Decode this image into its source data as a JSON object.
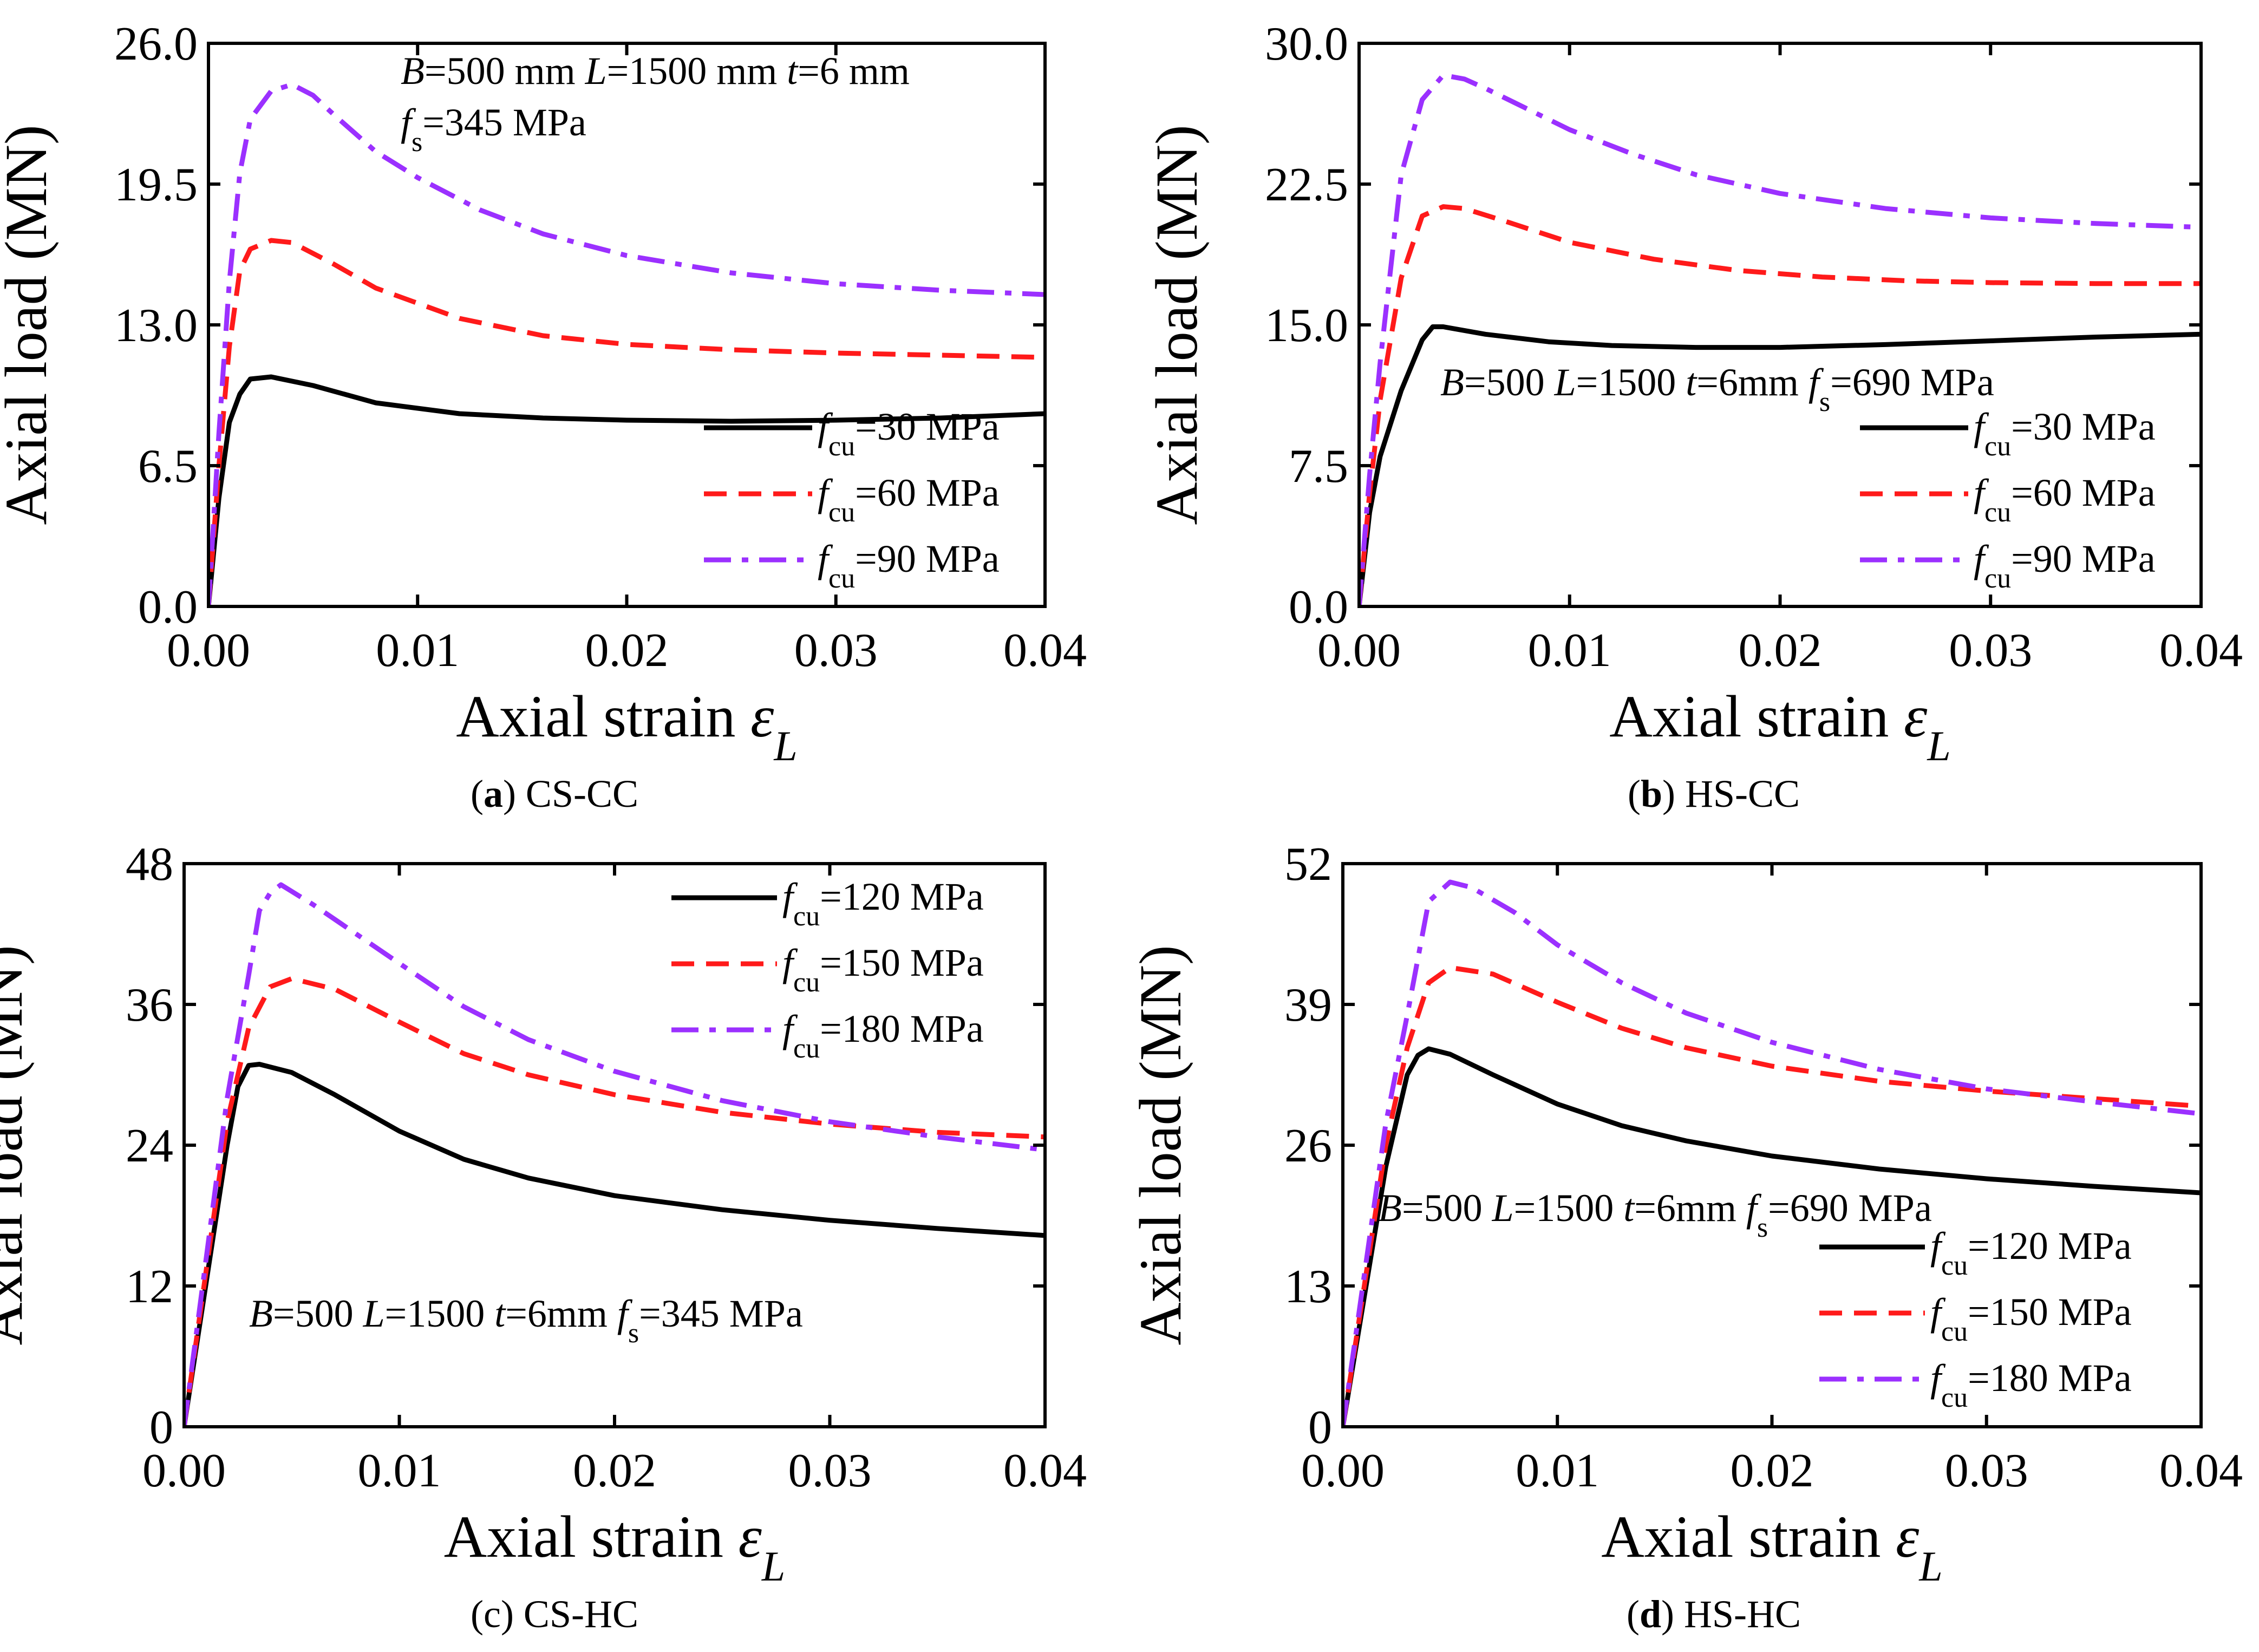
{
  "figure": {
    "colors": {
      "black": "#000000",
      "red": "#ff1a1a",
      "purple": "#9b30ff"
    }
  },
  "chart_data": [
    {
      "type": "line",
      "panel_id": "a",
      "caption_letter": "a",
      "caption_text": "CS-CC",
      "caption_bold": true,
      "xlabel": "Axial strain",
      "xlabel_symbol": "ε",
      "xlabel_subscript": "L",
      "ylabel": "Axial load (MN)",
      "xlim": [
        0,
        0.04
      ],
      "ylim": [
        0,
        26
      ],
      "xticks": [
        "0.00",
        "0.01",
        "0.02",
        "0.03",
        "0.04"
      ],
      "yticks": [
        "0.0",
        "6.5",
        "13.0",
        "19.5",
        "26.0"
      ],
      "legend_position": "bottom-right",
      "annotation": "B=500 mm  L=1500 mm  t=6 mm  fs=345 MPa",
      "series": [
        {
          "name": "fcu=30 MPa",
          "label_prefix": "f",
          "label_sub": "cu",
          "label_suffix": "=30 MPa",
          "color": "#000000",
          "dash": "solid",
          "points": [
            [
              0,
              0
            ],
            [
              0.0005,
              5.0
            ],
            [
              0.001,
              8.5
            ],
            [
              0.0015,
              9.8
            ],
            [
              0.002,
              10.5
            ],
            [
              0.003,
              10.6
            ],
            [
              0.005,
              10.2
            ],
            [
              0.008,
              9.4
            ],
            [
              0.012,
              8.9
            ],
            [
              0.016,
              8.7
            ],
            [
              0.02,
              8.6
            ],
            [
              0.025,
              8.55
            ],
            [
              0.03,
              8.6
            ],
            [
              0.035,
              8.7
            ],
            [
              0.04,
              8.9
            ]
          ]
        },
        {
          "name": "fcu=60 MPa",
          "label_prefix": "f",
          "label_sub": "cu",
          "label_suffix": "=60 MPa",
          "color": "#ff1a1a",
          "dash": "dash",
          "points": [
            [
              0,
              0
            ],
            [
              0.0005,
              6.5
            ],
            [
              0.001,
              12.0
            ],
            [
              0.0015,
              15.5
            ],
            [
              0.002,
              16.5
            ],
            [
              0.003,
              16.9
            ],
            [
              0.004,
              16.8
            ],
            [
              0.006,
              15.8
            ],
            [
              0.008,
              14.7
            ],
            [
              0.012,
              13.3
            ],
            [
              0.016,
              12.5
            ],
            [
              0.02,
              12.1
            ],
            [
              0.025,
              11.85
            ],
            [
              0.03,
              11.7
            ],
            [
              0.035,
              11.6
            ],
            [
              0.04,
              11.5
            ]
          ]
        },
        {
          "name": "fcu=90 MPa",
          "label_prefix": "f",
          "label_sub": "cu",
          "label_suffix": "=90 MPa",
          "color": "#9b30ff",
          "dash": "dashdot",
          "points": [
            [
              0,
              0
            ],
            [
              0.0005,
              8.0
            ],
            [
              0.001,
              15.0
            ],
            [
              0.0015,
              20.0
            ],
            [
              0.002,
              22.5
            ],
            [
              0.003,
              23.8
            ],
            [
              0.004,
              24.1
            ],
            [
              0.005,
              23.6
            ],
            [
              0.006,
              22.7
            ],
            [
              0.008,
              21.0
            ],
            [
              0.01,
              19.8
            ],
            [
              0.013,
              18.3
            ],
            [
              0.016,
              17.2
            ],
            [
              0.02,
              16.2
            ],
            [
              0.025,
              15.4
            ],
            [
              0.03,
              14.9
            ],
            [
              0.035,
              14.6
            ],
            [
              0.04,
              14.4
            ]
          ]
        }
      ]
    },
    {
      "type": "line",
      "panel_id": "b",
      "caption_letter": "b",
      "caption_text": "HS-CC",
      "caption_bold": true,
      "xlabel": "Axial strain",
      "xlabel_symbol": "ε",
      "xlabel_subscript": "L",
      "ylabel": "Axial load (MN)",
      "xlim": [
        0,
        0.04
      ],
      "ylim": [
        0,
        30
      ],
      "xticks": [
        "0.00",
        "0.01",
        "0.02",
        "0.03",
        "0.04"
      ],
      "yticks": [
        "0.0",
        "7.5",
        "15.0",
        "22.5",
        "30.0"
      ],
      "legend_position": "bottom-right",
      "annotation": "B=500  L=1500  t=6mm fs=690 MPa",
      "series": [
        {
          "name": "fcu=30 MPa",
          "label_prefix": "f",
          "label_sub": "cu",
          "label_suffix": "=30 MPa",
          "color": "#000000",
          "dash": "solid",
          "points": [
            [
              0,
              0
            ],
            [
              0.0005,
              5.0
            ],
            [
              0.001,
              8.0
            ],
            [
              0.002,
              11.5
            ],
            [
              0.003,
              14.2
            ],
            [
              0.0035,
              14.9
            ],
            [
              0.004,
              14.9
            ],
            [
              0.006,
              14.5
            ],
            [
              0.009,
              14.1
            ],
            [
              0.012,
              13.9
            ],
            [
              0.016,
              13.8
            ],
            [
              0.02,
              13.8
            ],
            [
              0.025,
              13.95
            ],
            [
              0.03,
              14.15
            ],
            [
              0.035,
              14.35
            ],
            [
              0.04,
              14.5
            ]
          ]
        },
        {
          "name": "fcu=60 MPa",
          "label_prefix": "f",
          "label_sub": "cu",
          "label_suffix": "=60 MPa",
          "color": "#ff1a1a",
          "dash": "dash",
          "points": [
            [
              0,
              0
            ],
            [
              0.0005,
              6.0
            ],
            [
              0.001,
              11.0
            ],
            [
              0.002,
              17.5
            ],
            [
              0.003,
              20.8
            ],
            [
              0.004,
              21.3
            ],
            [
              0.005,
              21.2
            ],
            [
              0.007,
              20.5
            ],
            [
              0.01,
              19.4
            ],
            [
              0.014,
              18.5
            ],
            [
              0.018,
              17.9
            ],
            [
              0.022,
              17.55
            ],
            [
              0.026,
              17.35
            ],
            [
              0.03,
              17.25
            ],
            [
              0.035,
              17.2
            ],
            [
              0.04,
              17.2
            ]
          ]
        },
        {
          "name": "fcu=90 MPa",
          "label_prefix": "f",
          "label_sub": "cu",
          "label_suffix": "=90 MPa",
          "color": "#9b30ff",
          "dash": "dashdot",
          "points": [
            [
              0,
              0
            ],
            [
              0.0005,
              7.0
            ],
            [
              0.001,
              13.0
            ],
            [
              0.002,
              23.0
            ],
            [
              0.003,
              27.0
            ],
            [
              0.004,
              28.3
            ],
            [
              0.005,
              28.1
            ],
            [
              0.006,
              27.6
            ],
            [
              0.008,
              26.5
            ],
            [
              0.01,
              25.4
            ],
            [
              0.013,
              24.1
            ],
            [
              0.016,
              23.0
            ],
            [
              0.02,
              22.0
            ],
            [
              0.025,
              21.2
            ],
            [
              0.03,
              20.7
            ],
            [
              0.035,
              20.4
            ],
            [
              0.04,
              20.2
            ]
          ]
        }
      ]
    },
    {
      "type": "line",
      "panel_id": "c",
      "caption_letter": "c",
      "caption_text": "CS-HC",
      "caption_bold": false,
      "xlabel": "Axial strain",
      "xlabel_symbol": "ε",
      "xlabel_subscript": "L",
      "ylabel": "Axial load (MN)",
      "xlim": [
        0,
        0.04
      ],
      "ylim": [
        0,
        48
      ],
      "xticks": [
        "0.00",
        "0.01",
        "0.02",
        "0.03",
        "0.04"
      ],
      "yticks": [
        "0",
        "12",
        "24",
        "36",
        "48"
      ],
      "legend_position": "top-right",
      "annotation": "B=500  L=1500  t=6mm fs=345 MPa",
      "series": [
        {
          "name": "fcu=120 MPa",
          "label_prefix": "f",
          "label_sub": "cu",
          "label_suffix": "=120 MPa",
          "color": "#000000",
          "dash": "solid",
          "points": [
            [
              0,
              0
            ],
            [
              0.001,
              12.0
            ],
            [
              0.002,
              24.0
            ],
            [
              0.0025,
              29.0
            ],
            [
              0.003,
              30.8
            ],
            [
              0.0035,
              30.9
            ],
            [
              0.005,
              30.2
            ],
            [
              0.007,
              28.3
            ],
            [
              0.01,
              25.2
            ],
            [
              0.013,
              22.8
            ],
            [
              0.016,
              21.2
            ],
            [
              0.02,
              19.7
            ],
            [
              0.025,
              18.5
            ],
            [
              0.03,
              17.6
            ],
            [
              0.035,
              16.9
            ],
            [
              0.04,
              16.3
            ]
          ]
        },
        {
          "name": "fcu=150 MPa",
          "label_prefix": "f",
          "label_sub": "cu",
          "label_suffix": "=150 MPa",
          "color": "#ff1a1a",
          "dash": "dash",
          "points": [
            [
              0,
              0
            ],
            [
              0.001,
              13.0
            ],
            [
              0.002,
              26.0
            ],
            [
              0.003,
              34.0
            ],
            [
              0.004,
              37.5
            ],
            [
              0.005,
              38.2
            ],
            [
              0.007,
              37.3
            ],
            [
              0.01,
              34.5
            ],
            [
              0.013,
              31.8
            ],
            [
              0.016,
              30.0
            ],
            [
              0.02,
              28.3
            ],
            [
              0.025,
              26.8
            ],
            [
              0.03,
              25.8
            ],
            [
              0.035,
              25.1
            ],
            [
              0.04,
              24.7
            ]
          ]
        },
        {
          "name": "fcu=180 MPa",
          "label_prefix": "f",
          "label_sub": "cu",
          "label_suffix": "=180 MPa",
          "color": "#9b30ff",
          "dash": "dashdot",
          "points": [
            [
              0,
              0
            ],
            [
              0.001,
              14.0
            ],
            [
              0.002,
              28.0
            ],
            [
              0.003,
              38.5
            ],
            [
              0.0035,
              44.0
            ],
            [
              0.004,
              45.5
            ],
            [
              0.0045,
              46.2
            ],
            [
              0.006,
              44.5
            ],
            [
              0.008,
              42.0
            ],
            [
              0.01,
              39.5
            ],
            [
              0.013,
              35.8
            ],
            [
              0.016,
              33.0
            ],
            [
              0.02,
              30.3
            ],
            [
              0.025,
              27.8
            ],
            [
              0.03,
              26.0
            ],
            [
              0.035,
              24.7
            ],
            [
              0.04,
              23.6
            ]
          ]
        }
      ]
    },
    {
      "type": "line",
      "panel_id": "d",
      "caption_letter": "d",
      "caption_text": "HS-HC",
      "caption_bold": true,
      "xlabel": "Axial strain",
      "xlabel_symbol": "ε",
      "xlabel_subscript": "L",
      "ylabel": "Axial load (MN)",
      "xlim": [
        0,
        0.04
      ],
      "ylim": [
        0,
        52
      ],
      "xticks": [
        "0.00",
        "0.01",
        "0.02",
        "0.03",
        "0.04"
      ],
      "yticks": [
        "0",
        "13",
        "26",
        "39",
        "52"
      ],
      "legend_position": "bottom-right",
      "annotation": "B=500  L=1500  t=6mm fs=690 MPa",
      "series": [
        {
          "name": "fcu=120 MPa",
          "label_prefix": "f",
          "label_sub": "cu",
          "label_suffix": "=120 MPa",
          "color": "#000000",
          "dash": "solid",
          "points": [
            [
              0,
              0
            ],
            [
              0.001,
              12.0
            ],
            [
              0.002,
              24.0
            ],
            [
              0.003,
              32.5
            ],
            [
              0.0035,
              34.3
            ],
            [
              0.004,
              34.9
            ],
            [
              0.005,
              34.4
            ],
            [
              0.007,
              32.5
            ],
            [
              0.01,
              29.8
            ],
            [
              0.013,
              27.8
            ],
            [
              0.016,
              26.4
            ],
            [
              0.02,
              25.0
            ],
            [
              0.025,
              23.8
            ],
            [
              0.03,
              22.9
            ],
            [
              0.035,
              22.2
            ],
            [
              0.04,
              21.6
            ]
          ]
        },
        {
          "name": "fcu=150 MPa",
          "label_prefix": "f",
          "label_sub": "cu",
          "label_suffix": "=150 MPa",
          "color": "#ff1a1a",
          "dash": "dash",
          "points": [
            [
              0,
              0
            ],
            [
              0.001,
              13.0
            ],
            [
              0.002,
              26.0
            ],
            [
              0.003,
              35.0
            ],
            [
              0.004,
              41.0
            ],
            [
              0.005,
              42.4
            ],
            [
              0.007,
              41.8
            ],
            [
              0.01,
              39.2
            ],
            [
              0.013,
              36.8
            ],
            [
              0.016,
              35.0
            ],
            [
              0.02,
              33.3
            ],
            [
              0.025,
              31.9
            ],
            [
              0.03,
              31.0
            ],
            [
              0.035,
              30.3
            ],
            [
              0.04,
              29.6
            ]
          ]
        },
        {
          "name": "fcu=180 MPa",
          "label_prefix": "f",
          "label_sub": "cu",
          "label_suffix": "=180 MPa",
          "color": "#9b30ff",
          "dash": "dashdot",
          "points": [
            [
              0,
              0
            ],
            [
              0.001,
              14.0
            ],
            [
              0.002,
              28.0
            ],
            [
              0.003,
              38.0
            ],
            [
              0.004,
              48.5
            ],
            [
              0.005,
              50.3
            ],
            [
              0.006,
              49.8
            ],
            [
              0.008,
              47.5
            ],
            [
              0.01,
              44.5
            ],
            [
              0.013,
              41.0
            ],
            [
              0.016,
              38.2
            ],
            [
              0.02,
              35.5
            ],
            [
              0.025,
              33.0
            ],
            [
              0.03,
              31.2
            ],
            [
              0.035,
              30.0
            ],
            [
              0.04,
              28.9
            ]
          ]
        }
      ]
    }
  ]
}
